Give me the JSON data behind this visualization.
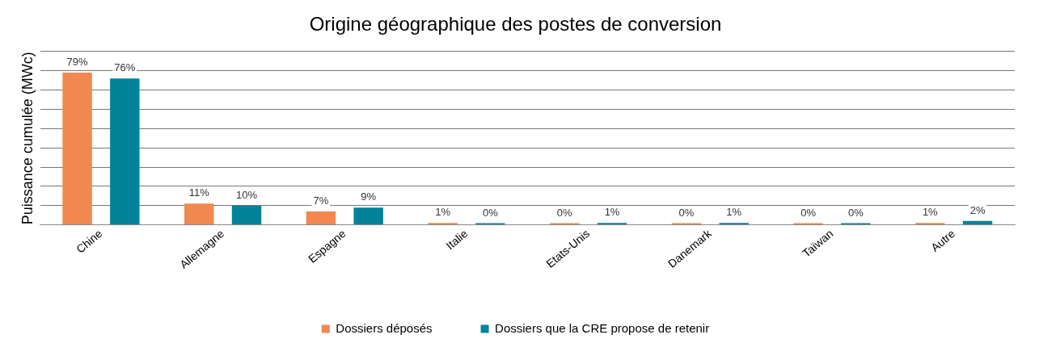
{
  "chart_data": {
    "type": "bar",
    "title": "Origine géographique des postes de conversion",
    "ylabel": "Puissance cumulée (MWc)",
    "categories": [
      "Chine",
      "Allemagne",
      "Espagne",
      "Italie",
      "Etats-Unis",
      "Danemark",
      "Taïwan",
      "Autre"
    ],
    "series": [
      {
        "name": "Dossiers déposés",
        "color": "#f0884f",
        "values": [
          79,
          11,
          7,
          1,
          0,
          0,
          0,
          1
        ],
        "value_labels": [
          "79%",
          "11%",
          "7%",
          "1%",
          "0%",
          "0%",
          "0%",
          "1%"
        ]
      },
      {
        "name": "Dossiers que la CRE propose de retenir",
        "color": "#00839a",
        "values": [
          76,
          10,
          9,
          0,
          1,
          1,
          0,
          2
        ],
        "value_labels": [
          "76%",
          "10%",
          "9%",
          "0%",
          "1%",
          "1%",
          "0%",
          "2%"
        ]
      }
    ],
    "ylim": [
      0,
      90
    ],
    "yticks": [
      {
        "value": 0,
        "label": null
      },
      {
        "value": 10,
        "label": null
      },
      {
        "value": 20,
        "label": null
      },
      {
        "value": 30,
        "label": null
      },
      {
        "value": 40,
        "label": null
      },
      {
        "value": 50,
        "label": null
      },
      {
        "value": 60,
        "label": null
      },
      {
        "value": 70,
        "label": null
      },
      {
        "value": 80,
        "label": null
      },
      {
        "value": 90,
        "label": null
      }
    ],
    "grid": "y",
    "legend": "bottom",
    "tick_labels": "x"
  }
}
